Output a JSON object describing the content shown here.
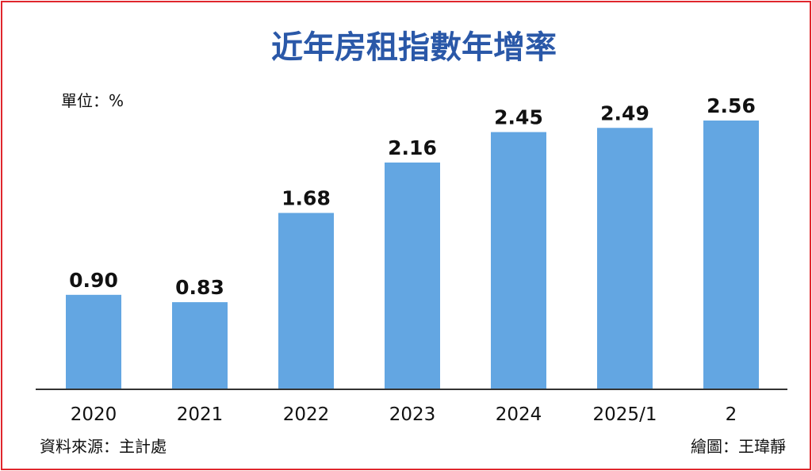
{
  "title": "近年房租指數年增率",
  "unit_label": "單位：%",
  "source_label": "資料來源：主計處",
  "credit_label": "繪圖：王瑋靜",
  "colors": {
    "bar": "#63a6e2",
    "title": "#2a58a8",
    "border": "#e0262d",
    "axis": "#333333"
  },
  "chart_data": {
    "type": "bar",
    "title": "近年房租指數年增率",
    "ylabel": "單位：%",
    "categories": [
      "2020",
      "2021",
      "2022",
      "2023",
      "2024",
      "2025/1",
      "2"
    ],
    "values": [
      0.9,
      0.83,
      1.68,
      2.16,
      2.45,
      2.49,
      2.56
    ],
    "value_labels": [
      "0.90",
      "0.83",
      "1.68",
      "2.16",
      "2.45",
      "2.49",
      "2.56"
    ],
    "ylim": [
      0,
      2.56
    ],
    "grid": false,
    "legend": "none"
  }
}
